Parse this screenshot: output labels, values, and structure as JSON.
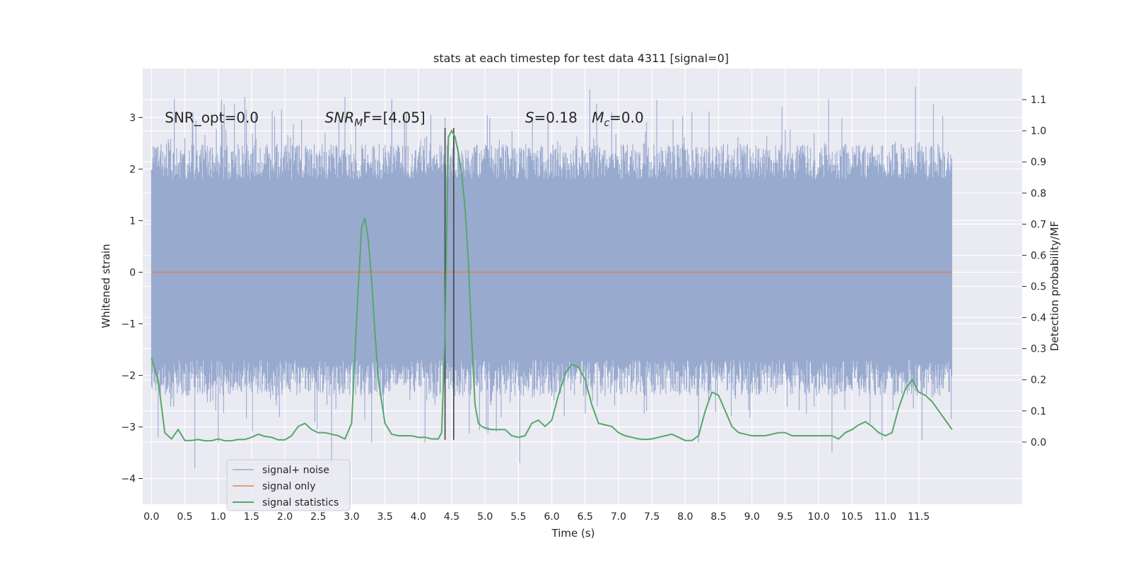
{
  "chart_data": {
    "type": "line",
    "title": "stats at each timestep for test data 4311 [signal=0]",
    "xlabel": "Time (s)",
    "ylabel": "Whitened strain",
    "y2label": "Detection probability/MF",
    "xlim": [
      -0.13,
      13.05
    ],
    "ylim": [
      -4.5,
      3.95
    ],
    "y2lim": [
      -0.2,
      1.2
    ],
    "x_ticks": [
      0.0,
      0.5,
      1.0,
      1.5,
      2.0,
      2.5,
      3.0,
      3.5,
      4.0,
      4.5,
      5.0,
      5.5,
      6.0,
      6.5,
      7.0,
      7.5,
      8.0,
      8.5,
      9.0,
      9.5,
      10.0,
      10.5,
      11.0,
      11.5
    ],
    "x_tick_labels": [
      "0.0",
      "0.5",
      "1.0",
      "1.5",
      "2.0",
      "2.5",
      "3.0",
      "3.5",
      "4.0",
      "4.5",
      "5.0",
      "5.5",
      "6.0",
      "6.5",
      "7.0",
      "7.5",
      "8.0",
      "8.5",
      "9.0",
      "9.5",
      "10.0",
      "10.5",
      "11.0",
      "11.5"
    ],
    "y_ticks": [
      3,
      2,
      1,
      0,
      -1,
      -2,
      -3,
      -4
    ],
    "y_tick_labels": [
      "3",
      "2",
      "1",
      "0",
      "−1",
      "−2",
      "−3",
      "−4"
    ],
    "y2_ticks": [
      1.1,
      1.0,
      0.9,
      0.8,
      0.7,
      0.6,
      0.5,
      0.4,
      0.3,
      0.2,
      0.1,
      0.0
    ],
    "y2_tick_labels": [
      "1.1",
      "1.0",
      "0.9",
      "0.8",
      "0.7",
      "0.6",
      "0.5",
      "0.4",
      "0.3",
      "0.2",
      "0.1",
      "0.0"
    ],
    "grid": true,
    "legend_position": "lower-left",
    "colors": {
      "background": "#eaeaf2",
      "grid": "#ffffff",
      "noise": "#99aacf",
      "signal": "#dd8452",
      "stats": "#55a868",
      "vline": "#444444"
    },
    "series": [
      {
        "name": "signal+ noise",
        "description_of_envelope": "dense noise between ~-2 and ~2.2 with spikes",
        "x_range": [
          0.0,
          12.0
        ],
        "envelope_lower_base": -2.0,
        "envelope_upper_base": 2.1,
        "spike_peaks": [
          {
            "x": 0.5,
            "y": 2.6
          },
          {
            "x": 0.62,
            "y": 3.1
          },
          {
            "x": 1.05,
            "y": 3.35
          },
          {
            "x": 1.4,
            "y": 3.4
          },
          {
            "x": 1.95,
            "y": 3.15
          },
          {
            "x": 2.25,
            "y": 2.95
          },
          {
            "x": 2.9,
            "y": 3.4
          },
          {
            "x": 3.6,
            "y": 3.3
          },
          {
            "x": 4.4,
            "y": 3.0
          },
          {
            "x": 6.57,
            "y": 3.55
          },
          {
            "x": 8.1,
            "y": 3.1
          },
          {
            "x": 9.45,
            "y": 3.2
          },
          {
            "x": 10.15,
            "y": 3.35
          },
          {
            "x": 11.45,
            "y": 3.6
          },
          {
            "x": 11.72,
            "y": 3.25
          }
        ],
        "spike_troughs": [
          {
            "x": 0.1,
            "y": -3.2
          },
          {
            "x": 0.65,
            "y": -3.8
          },
          {
            "x": 1.0,
            "y": -3.3
          },
          {
            "x": 2.7,
            "y": -4.1
          },
          {
            "x": 3.3,
            "y": -3.3
          },
          {
            "x": 4.1,
            "y": -3.3
          },
          {
            "x": 5.52,
            "y": -3.7
          },
          {
            "x": 8.2,
            "y": -3.3
          },
          {
            "x": 10.2,
            "y": -3.5
          },
          {
            "x": 10.95,
            "y": -3.25
          },
          {
            "x": 11.55,
            "y": -3.25
          }
        ]
      },
      {
        "name": "signal only",
        "x": [
          0.0,
          12.0
        ],
        "y": [
          0.0,
          0.0
        ]
      },
      {
        "name": "signal statistics",
        "axis": "right",
        "x": [
          0.0,
          0.1,
          0.2,
          0.3,
          0.4,
          0.5,
          0.6,
          0.7,
          0.8,
          0.9,
          1.0,
          1.1,
          1.2,
          1.3,
          1.4,
          1.5,
          1.6,
          1.7,
          1.8,
          1.9,
          2.0,
          2.1,
          2.2,
          2.3,
          2.4,
          2.5,
          2.6,
          2.7,
          2.8,
          2.9,
          3.0,
          3.1,
          3.15,
          3.2,
          3.25,
          3.3,
          3.35,
          3.4,
          3.5,
          3.6,
          3.7,
          3.8,
          3.9,
          4.0,
          4.1,
          4.2,
          4.3,
          4.35,
          4.4,
          4.45,
          4.5,
          4.55,
          4.6,
          4.65,
          4.7,
          4.75,
          4.8,
          4.85,
          4.9,
          4.95,
          5.0,
          5.1,
          5.2,
          5.3,
          5.4,
          5.5,
          5.6,
          5.7,
          5.8,
          5.9,
          6.0,
          6.1,
          6.2,
          6.3,
          6.4,
          6.5,
          6.6,
          6.7,
          6.8,
          6.9,
          7.0,
          7.1,
          7.2,
          7.3,
          7.4,
          7.5,
          7.6,
          7.7,
          7.8,
          7.9,
          8.0,
          8.1,
          8.2,
          8.3,
          8.4,
          8.5,
          8.6,
          8.7,
          8.8,
          8.9,
          9.0,
          9.2,
          9.4,
          9.5,
          9.6,
          9.8,
          10.0,
          10.1,
          10.2,
          10.3,
          10.4,
          10.5,
          10.6,
          10.7,
          10.8,
          10.9,
          11.0,
          11.1,
          11.2,
          11.3,
          11.4,
          11.5,
          11.6,
          11.7,
          11.8,
          11.9,
          12.0
        ],
        "y": [
          0.27,
          0.2,
          0.03,
          0.01,
          0.04,
          0.005,
          0.005,
          0.008,
          0.004,
          0.004,
          0.01,
          0.004,
          0.004,
          0.008,
          0.008,
          0.015,
          0.025,
          0.018,
          0.015,
          0.007,
          0.007,
          0.02,
          0.05,
          0.06,
          0.04,
          0.03,
          0.03,
          0.025,
          0.02,
          0.01,
          0.06,
          0.5,
          0.69,
          0.72,
          0.65,
          0.52,
          0.35,
          0.2,
          0.06,
          0.025,
          0.02,
          0.02,
          0.02,
          0.015,
          0.015,
          0.01,
          0.01,
          0.03,
          0.35,
          0.98,
          1.0,
          0.98,
          0.93,
          0.86,
          0.75,
          0.58,
          0.33,
          0.12,
          0.06,
          0.05,
          0.045,
          0.04,
          0.04,
          0.04,
          0.02,
          0.015,
          0.02,
          0.06,
          0.07,
          0.05,
          0.07,
          0.15,
          0.22,
          0.25,
          0.24,
          0.2,
          0.12,
          0.06,
          0.055,
          0.05,
          0.03,
          0.02,
          0.015,
          0.01,
          0.008,
          0.01,
          0.015,
          0.02,
          0.025,
          0.015,
          0.005,
          0.005,
          0.02,
          0.1,
          0.16,
          0.15,
          0.1,
          0.05,
          0.03,
          0.025,
          0.02,
          0.02,
          0.03,
          0.03,
          0.02,
          0.02,
          0.02,
          0.02,
          0.02,
          0.01,
          0.03,
          0.04,
          0.055,
          0.065,
          0.05,
          0.03,
          0.02,
          0.03,
          0.11,
          0.17,
          0.2,
          0.16,
          0.15,
          0.13,
          0.1,
          0.07,
          0.04
        ]
      }
    ],
    "vlines": [
      4.4,
      4.53
    ],
    "vline_range": [
      -3.25,
      2.8
    ],
    "annotations": [
      {
        "text": "SNR_opt=0.0",
        "x": 0.2,
        "y": 2.9
      },
      {
        "text_main": "SNR",
        "text_sub": "M",
        "text_rest": "F=[4.05]",
        "x": 2.6,
        "y": 2.9
      },
      {
        "text_main": "S",
        "text_rest": "=0.18",
        "x": 5.6,
        "y": 2.9
      },
      {
        "text_main": "M",
        "text_sub": "c",
        "text_rest": "=0.0",
        "x": 6.6,
        "y": 2.9
      }
    ]
  }
}
